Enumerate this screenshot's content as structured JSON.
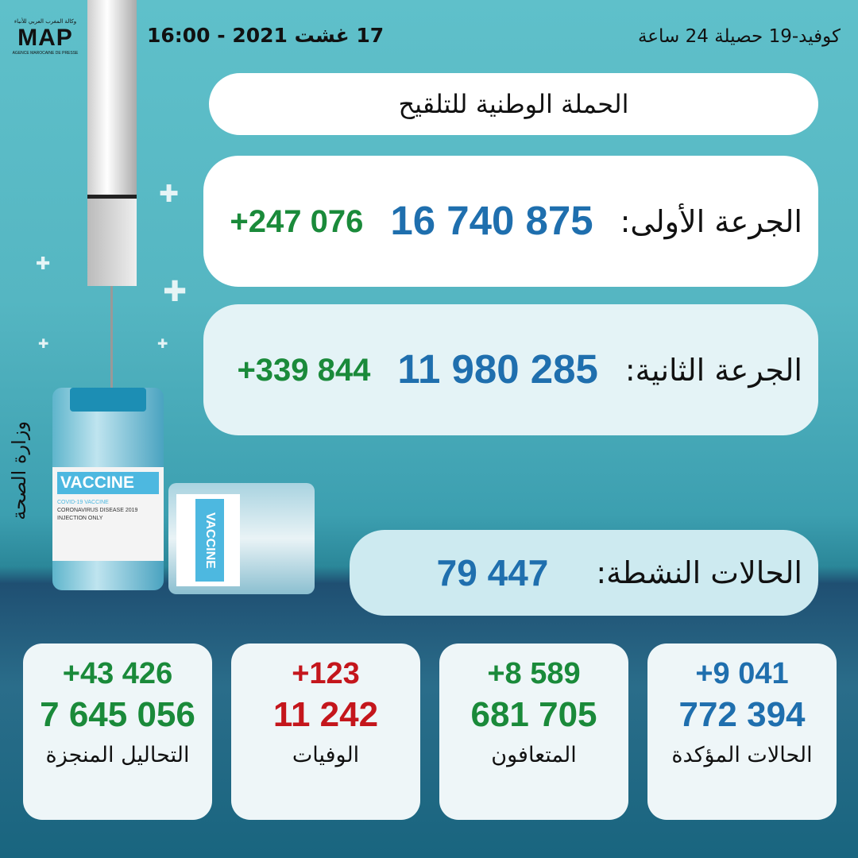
{
  "logo": {
    "arabic": "وكالة المغرب العربي للأنباء",
    "name": "MAP",
    "subtitle": "AGENCE MAROCAINE DE PRESSE"
  },
  "header": {
    "date": "17 غشت 2021 - 16:00",
    "title_right": "كوفيد-19 حصيلة 24 ساعة"
  },
  "campaign": {
    "title": "الحملة الوطنية للتلقيح"
  },
  "first_dose": {
    "label": "الجرعة الأولى:",
    "value": "16 740 875",
    "increase": "+247 076"
  },
  "second_dose": {
    "label": "الجرعة الثانية:",
    "value": "11 980 285",
    "increase": "+339 844"
  },
  "active_cases": {
    "label": "الحالات النشطة:",
    "value": "79 447"
  },
  "ministry": "وزارة الصحة",
  "illustration": {
    "vial_label": "VACCINE",
    "line1": "COVID-19 VACCINE",
    "line2": "CORONAVIRUS DISEASE 2019",
    "line3": "INJECTION ONLY"
  },
  "cards": [
    {
      "label": "الحالات المؤكدة",
      "value": "772 394",
      "increase": "+9 041",
      "color": "#1f6fae"
    },
    {
      "label": "المتعافون",
      "value": "681 705",
      "increase": "+8 589",
      "color": "#1a8a3a"
    },
    {
      "label": "الوفيات",
      "value": "11 242",
      "increase": "+123",
      "color": "#c4161c"
    },
    {
      "label": "التحاليل المنجزة",
      "value": "7 645 056",
      "increase": "+43 426",
      "color": "#1a8a3a"
    }
  ]
}
